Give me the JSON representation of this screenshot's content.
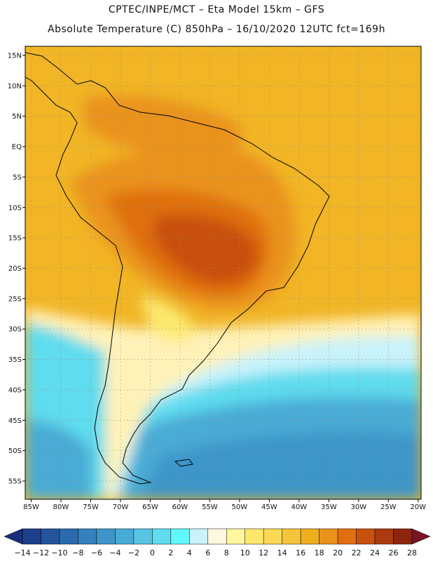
{
  "header": {
    "line1": "CPTEC/INPE/MCT –  Eta Model 15km – GFS",
    "line2": "Absolute Temperature (C) 850hPa – 16/10/2020 12UTC fct=169h"
  },
  "map": {
    "lat_range": [
      -58,
      16.5
    ],
    "lon_range": [
      -86,
      -19.5
    ],
    "lat_ticks": [
      {
        "value": 15,
        "label": "15N"
      },
      {
        "value": 10,
        "label": "10N"
      },
      {
        "value": 5,
        "label": "5N"
      },
      {
        "value": 0,
        "label": "EQ"
      },
      {
        "value": -5,
        "label": "5S"
      },
      {
        "value": -10,
        "label": "10S"
      },
      {
        "value": -15,
        "label": "15S"
      },
      {
        "value": -20,
        "label": "20S"
      },
      {
        "value": -25,
        "label": "25S"
      },
      {
        "value": -30,
        "label": "30S"
      },
      {
        "value": -35,
        "label": "35S"
      },
      {
        "value": -40,
        "label": "40S"
      },
      {
        "value": -45,
        "label": "45S"
      },
      {
        "value": -50,
        "label": "50S"
      },
      {
        "value": -55,
        "label": "55S"
      }
    ],
    "lon_ticks": [
      {
        "value": -85,
        "label": "85W"
      },
      {
        "value": -80,
        "label": "80W"
      },
      {
        "value": -75,
        "label": "75W"
      },
      {
        "value": -70,
        "label": "70W"
      },
      {
        "value": -65,
        "label": "65W"
      },
      {
        "value": -60,
        "label": "60W"
      },
      {
        "value": -55,
        "label": "55W"
      },
      {
        "value": -50,
        "label": "50W"
      },
      {
        "value": -45,
        "label": "45W"
      },
      {
        "value": -40,
        "label": "40W"
      },
      {
        "value": -35,
        "label": "35W"
      },
      {
        "value": -30,
        "label": "30W"
      },
      {
        "value": -25,
        "label": "25W"
      },
      {
        "value": -20,
        "label": "20W"
      }
    ]
  },
  "colorbar": {
    "levels": [
      "-14",
      "-12",
      "-10",
      "-8",
      "-6",
      "-4",
      "-2",
      "0",
      "2",
      "4",
      "6",
      "8",
      "10",
      "12",
      "14",
      "16",
      "18",
      "20",
      "22",
      "24",
      "26",
      "28"
    ],
    "colors": [
      "#1e3f8a",
      "#24559c",
      "#2b6aad",
      "#3580bd",
      "#3d95c9",
      "#48abd6",
      "#58c3e3",
      "#5fdcee",
      "#62f7fb",
      "#c8f3fb",
      "#fff8e1",
      "#fff69e",
      "#fde86e",
      "#fbd955",
      "#f4c53a",
      "#f0ae1f",
      "#ea931a",
      "#df6f10",
      "#c8500e",
      "#ac3a0e",
      "#8c2510"
    ],
    "under_color": "#1a2f7a",
    "over_color": "#7a1424"
  }
}
